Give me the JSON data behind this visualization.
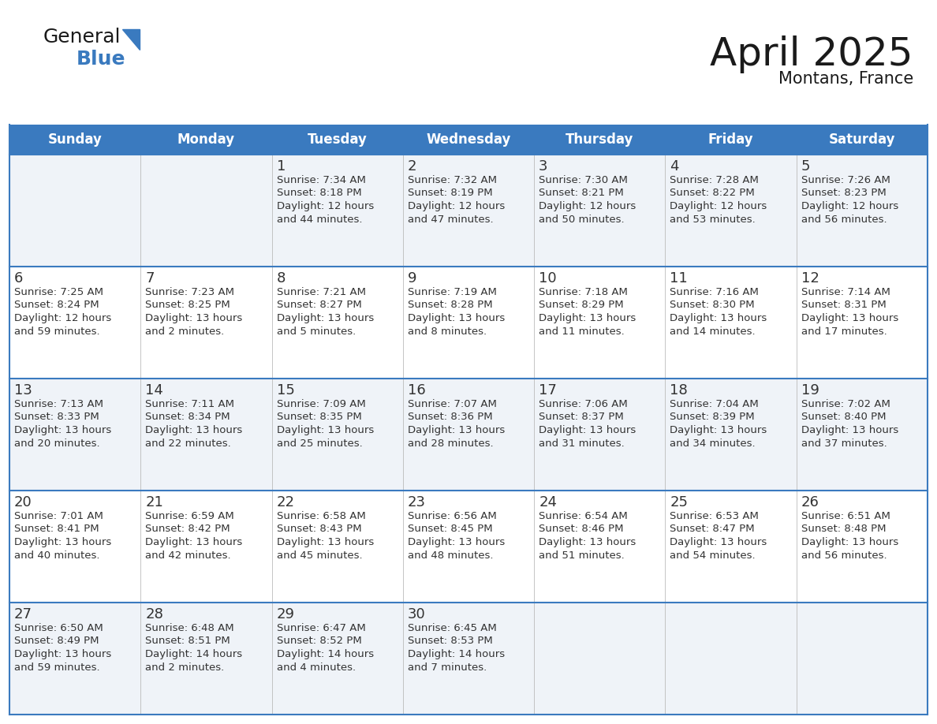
{
  "title": "April 2025",
  "subtitle": "Montans, France",
  "header_color": "#3a7abf",
  "header_text_color": "#ffffff",
  "text_color": "#333333",
  "border_color": "#3a7abf",
  "row_bg_odd": "#eff3f8",
  "row_bg_even": "#ffffff",
  "days_of_week": [
    "Sunday",
    "Monday",
    "Tuesday",
    "Wednesday",
    "Thursday",
    "Friday",
    "Saturday"
  ],
  "calendar": [
    [
      {
        "day": "",
        "info": ""
      },
      {
        "day": "",
        "info": ""
      },
      {
        "day": "1",
        "info": "Sunrise: 7:34 AM\nSunset: 8:18 PM\nDaylight: 12 hours\nand 44 minutes."
      },
      {
        "day": "2",
        "info": "Sunrise: 7:32 AM\nSunset: 8:19 PM\nDaylight: 12 hours\nand 47 minutes."
      },
      {
        "day": "3",
        "info": "Sunrise: 7:30 AM\nSunset: 8:21 PM\nDaylight: 12 hours\nand 50 minutes."
      },
      {
        "day": "4",
        "info": "Sunrise: 7:28 AM\nSunset: 8:22 PM\nDaylight: 12 hours\nand 53 minutes."
      },
      {
        "day": "5",
        "info": "Sunrise: 7:26 AM\nSunset: 8:23 PM\nDaylight: 12 hours\nand 56 minutes."
      }
    ],
    [
      {
        "day": "6",
        "info": "Sunrise: 7:25 AM\nSunset: 8:24 PM\nDaylight: 12 hours\nand 59 minutes."
      },
      {
        "day": "7",
        "info": "Sunrise: 7:23 AM\nSunset: 8:25 PM\nDaylight: 13 hours\nand 2 minutes."
      },
      {
        "day": "8",
        "info": "Sunrise: 7:21 AM\nSunset: 8:27 PM\nDaylight: 13 hours\nand 5 minutes."
      },
      {
        "day": "9",
        "info": "Sunrise: 7:19 AM\nSunset: 8:28 PM\nDaylight: 13 hours\nand 8 minutes."
      },
      {
        "day": "10",
        "info": "Sunrise: 7:18 AM\nSunset: 8:29 PM\nDaylight: 13 hours\nand 11 minutes."
      },
      {
        "day": "11",
        "info": "Sunrise: 7:16 AM\nSunset: 8:30 PM\nDaylight: 13 hours\nand 14 minutes."
      },
      {
        "day": "12",
        "info": "Sunrise: 7:14 AM\nSunset: 8:31 PM\nDaylight: 13 hours\nand 17 minutes."
      }
    ],
    [
      {
        "day": "13",
        "info": "Sunrise: 7:13 AM\nSunset: 8:33 PM\nDaylight: 13 hours\nand 20 minutes."
      },
      {
        "day": "14",
        "info": "Sunrise: 7:11 AM\nSunset: 8:34 PM\nDaylight: 13 hours\nand 22 minutes."
      },
      {
        "day": "15",
        "info": "Sunrise: 7:09 AM\nSunset: 8:35 PM\nDaylight: 13 hours\nand 25 minutes."
      },
      {
        "day": "16",
        "info": "Sunrise: 7:07 AM\nSunset: 8:36 PM\nDaylight: 13 hours\nand 28 minutes."
      },
      {
        "day": "17",
        "info": "Sunrise: 7:06 AM\nSunset: 8:37 PM\nDaylight: 13 hours\nand 31 minutes."
      },
      {
        "day": "18",
        "info": "Sunrise: 7:04 AM\nSunset: 8:39 PM\nDaylight: 13 hours\nand 34 minutes."
      },
      {
        "day": "19",
        "info": "Sunrise: 7:02 AM\nSunset: 8:40 PM\nDaylight: 13 hours\nand 37 minutes."
      }
    ],
    [
      {
        "day": "20",
        "info": "Sunrise: 7:01 AM\nSunset: 8:41 PM\nDaylight: 13 hours\nand 40 minutes."
      },
      {
        "day": "21",
        "info": "Sunrise: 6:59 AM\nSunset: 8:42 PM\nDaylight: 13 hours\nand 42 minutes."
      },
      {
        "day": "22",
        "info": "Sunrise: 6:58 AM\nSunset: 8:43 PM\nDaylight: 13 hours\nand 45 minutes."
      },
      {
        "day": "23",
        "info": "Sunrise: 6:56 AM\nSunset: 8:45 PM\nDaylight: 13 hours\nand 48 minutes."
      },
      {
        "day": "24",
        "info": "Sunrise: 6:54 AM\nSunset: 8:46 PM\nDaylight: 13 hours\nand 51 minutes."
      },
      {
        "day": "25",
        "info": "Sunrise: 6:53 AM\nSunset: 8:47 PM\nDaylight: 13 hours\nand 54 minutes."
      },
      {
        "day": "26",
        "info": "Sunrise: 6:51 AM\nSunset: 8:48 PM\nDaylight: 13 hours\nand 56 minutes."
      }
    ],
    [
      {
        "day": "27",
        "info": "Sunrise: 6:50 AM\nSunset: 8:49 PM\nDaylight: 13 hours\nand 59 minutes."
      },
      {
        "day": "28",
        "info": "Sunrise: 6:48 AM\nSunset: 8:51 PM\nDaylight: 14 hours\nand 2 minutes."
      },
      {
        "day": "29",
        "info": "Sunrise: 6:47 AM\nSunset: 8:52 PM\nDaylight: 14 hours\nand 4 minutes."
      },
      {
        "day": "30",
        "info": "Sunrise: 6:45 AM\nSunset: 8:53 PM\nDaylight: 14 hours\nand 7 minutes."
      },
      {
        "day": "",
        "info": ""
      },
      {
        "day": "",
        "info": ""
      },
      {
        "day": "",
        "info": ""
      }
    ]
  ]
}
